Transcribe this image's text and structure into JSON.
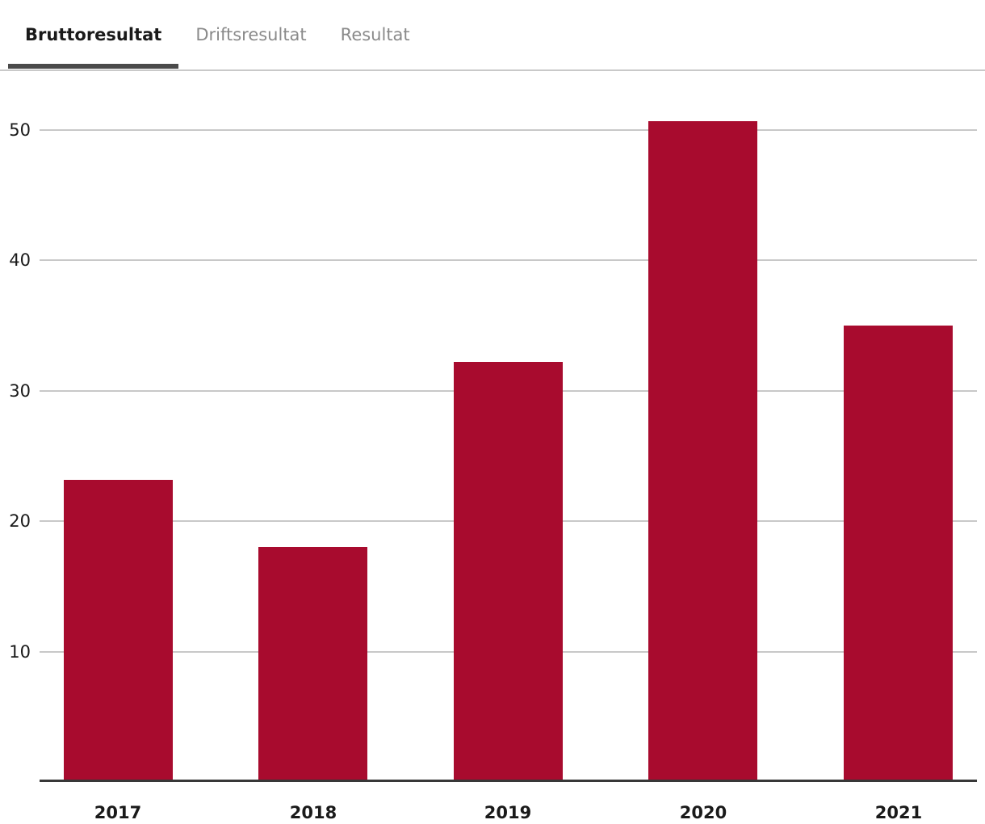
{
  "tabs": [
    {
      "label": "Bruttoresultat",
      "active": true
    },
    {
      "label": "Driftsresultat",
      "active": false
    },
    {
      "label": "Resultat",
      "active": false
    }
  ],
  "chart_data": {
    "type": "bar",
    "categories": [
      "2017",
      "2018",
      "2019",
      "2020",
      "2021"
    ],
    "values": [
      23.2,
      18.0,
      32.2,
      50.7,
      35.0
    ],
    "series_name": "Bruttoresultat",
    "xlabel": "",
    "ylabel": "",
    "ylim": [
      0,
      54
    ],
    "yticks": [
      10,
      20,
      30,
      40,
      50
    ],
    "grid": true,
    "legend": false
  },
  "colors": {
    "bar": "#a80b2e",
    "gridline": "#c8c8c8",
    "axis_line": "#383838",
    "active_tab_text": "#1a1a1a",
    "inactive_tab_text": "#8a8a8a",
    "active_tab_underline": "#4a4a4a",
    "tab_divider": "#c9c9c9"
  }
}
